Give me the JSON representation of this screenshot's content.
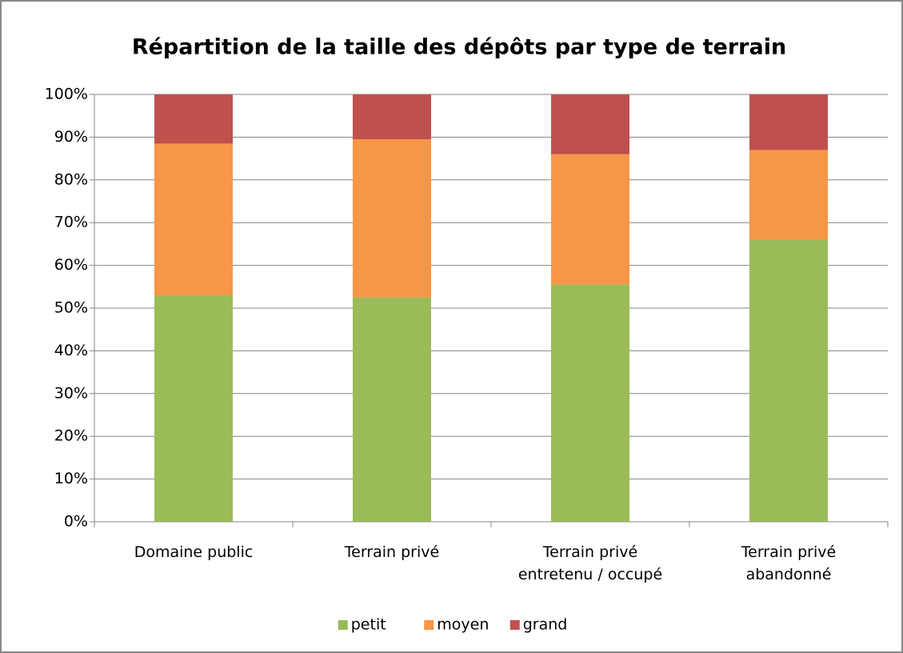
{
  "chart_data": {
    "type": "stacked_bar",
    "title": "Répartition de la taille des dépôts par type de terrain",
    "categories": [
      "Domaine public",
      "Terrain privé",
      "Terrain privé\nentretenu / occupé",
      "Terrain privé\nabandonné"
    ],
    "series": [
      {
        "name": "petit",
        "color": "#9bbb59",
        "values": [
          53,
          52.5,
          55.5,
          66
        ]
      },
      {
        "name": "moyen",
        "color": "#f79646",
        "values": [
          35.5,
          37,
          30.5,
          21
        ]
      },
      {
        "name": "grand",
        "color": "#c0504d",
        "values": [
          11.5,
          10.5,
          14,
          13
        ]
      }
    ],
    "ylim": [
      0,
      100
    ],
    "yticks": [
      {
        "value": 0,
        "label": "0%"
      },
      {
        "value": 10,
        "label": "10%"
      },
      {
        "value": 20,
        "label": "20%"
      },
      {
        "value": 30,
        "label": "30%"
      },
      {
        "value": 40,
        "label": "40%"
      },
      {
        "value": 50,
        "label": "50%"
      },
      {
        "value": 60,
        "label": "60%"
      },
      {
        "value": 70,
        "label": "70%"
      },
      {
        "value": 80,
        "label": "80%"
      },
      {
        "value": 90,
        "label": "90%"
      },
      {
        "value": 100,
        "label": "100%"
      }
    ],
    "grid": true,
    "legend": "bottom"
  }
}
